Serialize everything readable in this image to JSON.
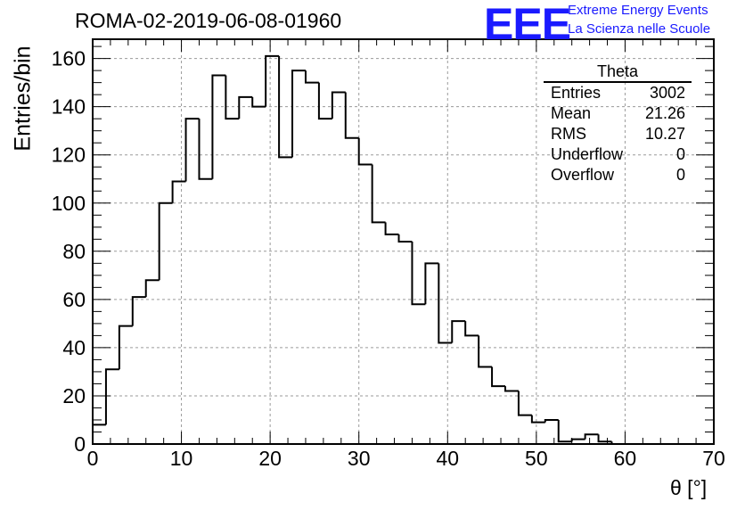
{
  "header": {
    "title": "ROMA-02-2019-06-08-01960",
    "logo_text": "EEE",
    "logo_line1": "Extreme Energy Events",
    "logo_line2": "La Scienza nelle Scuole"
  },
  "stats_box": {
    "title": "Theta",
    "rows": [
      {
        "label": "Entries",
        "value": "3002"
      },
      {
        "label": "Mean",
        "value": "21.26"
      },
      {
        "label": "RMS",
        "value": "10.27"
      },
      {
        "label": "Underflow",
        "value": "0"
      },
      {
        "label": "Overflow",
        "value": "0"
      }
    ]
  },
  "colors": {
    "logo": "#1a1aff",
    "histogram": "#000000",
    "grid": "#9a9a9a"
  },
  "chart_data": {
    "type": "bar",
    "title": "ROMA-02-2019-06-08-01960",
    "xlabel": "θ [°]",
    "ylabel": "Entries/bin",
    "xlim": [
      0,
      70
    ],
    "ylim": [
      0,
      168
    ],
    "grid": true,
    "bin_width": 1.5,
    "bin_start": 0,
    "values": [
      8,
      31,
      49,
      61,
      68,
      100,
      109,
      135,
      110,
      153,
      135,
      144,
      140,
      161,
      119,
      155,
      150,
      135,
      146,
      127,
      116,
      92,
      87,
      84,
      58,
      75,
      42,
      51,
      45,
      32,
      24,
      22,
      12,
      9,
      10,
      1,
      2,
      4,
      1,
      0,
      0,
      0,
      0,
      0,
      0,
      0
    ],
    "xticks": [
      "0",
      "10",
      "20",
      "30",
      "40",
      "50",
      "60",
      "70"
    ],
    "yticks": [
      "0",
      "20",
      "40",
      "60",
      "80",
      "100",
      "120",
      "140",
      "160"
    ]
  }
}
